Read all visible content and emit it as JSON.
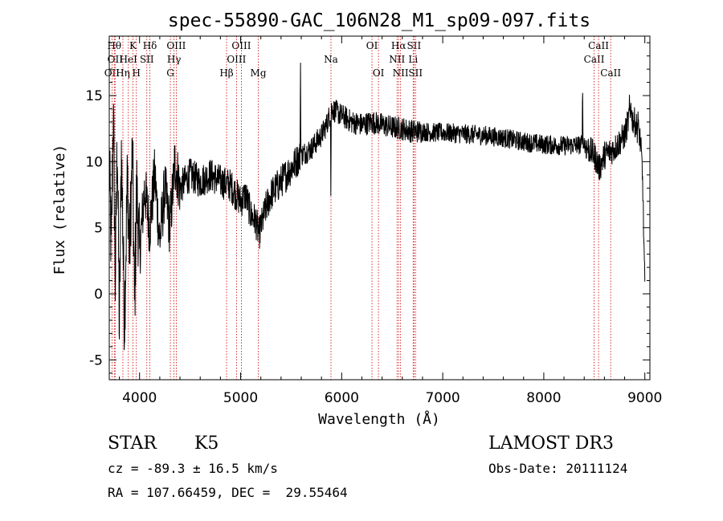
{
  "chart_data": {
    "type": "line",
    "title": "spec-55890-GAC_106N28_M1_sp09-097.fits",
    "xlabel": "Wavelength (Å)",
    "ylabel": "Flux (relative)",
    "xlim": [
      3700,
      9050
    ],
    "ylim": [
      -6.5,
      19.5
    ],
    "x_ticks": [
      4000,
      5000,
      6000,
      7000,
      8000,
      9000
    ],
    "x_tick_labels": [
      "4000",
      "5000",
      "6000",
      "7000",
      "8000",
      "9000"
    ],
    "y_ticks": [
      -5,
      0,
      5,
      10,
      15
    ],
    "y_tick_labels": [
      "-5",
      "0",
      "5",
      "10",
      "15"
    ],
    "series": [
      {
        "name": "spectrum",
        "color": "#000000",
        "anchors": [
          [
            3700,
            10
          ],
          [
            3720,
            3
          ],
          [
            3740,
            14
          ],
          [
            3760,
            1
          ],
          [
            3780,
            12
          ],
          [
            3800,
            -3
          ],
          [
            3820,
            11
          ],
          [
            3850,
            -2
          ],
          [
            3880,
            9
          ],
          [
            3900,
            3
          ],
          [
            3930,
            11
          ],
          [
            3950,
            -1
          ],
          [
            3970,
            8
          ],
          [
            4000,
            3
          ],
          [
            4050,
            8
          ],
          [
            4100,
            5
          ],
          [
            4150,
            9
          ],
          [
            4200,
            4
          ],
          [
            4250,
            8
          ],
          [
            4300,
            5
          ],
          [
            4350,
            10
          ],
          [
            4400,
            8
          ],
          [
            4500,
            9
          ],
          [
            4600,
            8.5
          ],
          [
            4700,
            9
          ],
          [
            4800,
            8.5
          ],
          [
            4900,
            8.2
          ],
          [
            5000,
            7
          ],
          [
            5050,
            7.5
          ],
          [
            5100,
            6
          ],
          [
            5150,
            5.5
          ],
          [
            5180,
            4.5
          ],
          [
            5200,
            5
          ],
          [
            5250,
            6.5
          ],
          [
            5300,
            7.5
          ],
          [
            5400,
            8.5
          ],
          [
            5500,
            9.5
          ],
          [
            5550,
            10
          ],
          [
            5600,
            10.5
          ],
          [
            5700,
            11
          ],
          [
            5800,
            12
          ],
          [
            5850,
            12.8
          ],
          [
            5900,
            14
          ],
          [
            6000,
            13.5
          ],
          [
            6100,
            13
          ],
          [
            6200,
            12.8
          ],
          [
            6300,
            13
          ],
          [
            6400,
            12.8
          ],
          [
            6500,
            12.6
          ],
          [
            6600,
            12.5
          ],
          [
            6700,
            12.3
          ],
          [
            6800,
            12.3
          ],
          [
            6900,
            12.2
          ],
          [
            7000,
            12.2
          ],
          [
            7200,
            12.1
          ],
          [
            7400,
            12
          ],
          [
            7600,
            11.8
          ],
          [
            7800,
            11.5
          ],
          [
            8000,
            11.3
          ],
          [
            8200,
            11.2
          ],
          [
            8400,
            11.3
          ],
          [
            8500,
            10.5
          ],
          [
            8550,
            9.5
          ],
          [
            8600,
            10.5
          ],
          [
            8700,
            11
          ],
          [
            8800,
            12
          ],
          [
            8850,
            13.5
          ],
          [
            8900,
            13
          ],
          [
            8950,
            12
          ],
          [
            8970,
            10
          ],
          [
            8980,
            8
          ],
          [
            8990,
            4
          ],
          [
            9000,
            0.5
          ]
        ],
        "spikes": [
          [
            5592,
            18.5
          ],
          [
            5600,
            11
          ],
          [
            5893,
            6.5
          ],
          [
            8384,
            16.5
          ],
          [
            8395,
            11
          ],
          [
            8848,
            15.3
          ],
          [
            8862,
            14.6
          ],
          [
            8933,
            14
          ]
        ]
      }
    ],
    "line_markers": [
      {
        "name": "OII",
        "wavelength": 3727,
        "row": 3
      },
      {
        "name": "Hθ",
        "wavelength": 3750,
        "row": 1
      },
      {
        "name": "OII",
        "wavelength": 3758,
        "row": 2
      },
      {
        "name": "Hη",
        "wavelength": 3835,
        "row": 3
      },
      {
        "name": "HeI",
        "wavelength": 3889,
        "row": 2
      },
      {
        "name": "K",
        "wavelength": 3934,
        "row": 1
      },
      {
        "name": "H",
        "wavelength": 3968,
        "row": 3
      },
      {
        "name": "SII",
        "wavelength": 4072,
        "row": 2
      },
      {
        "name": "Hδ",
        "wavelength": 4102,
        "row": 1
      },
      {
        "name": "G",
        "wavelength": 4305,
        "row": 3
      },
      {
        "name": "Hγ",
        "wavelength": 4341,
        "row": 2
      },
      {
        "name": "OIII",
        "wavelength": 4363,
        "row": 1
      },
      {
        "name": "Hβ",
        "wavelength": 4861,
        "row": 3
      },
      {
        "name": "OIII",
        "wavelength": 4959,
        "row": 2
      },
      {
        "name": "OIII",
        "wavelength": 5007,
        "row": 1
      },
      {
        "name": "Mg",
        "wavelength": 5175,
        "row": 3
      },
      {
        "name": "Na",
        "wavelength": 5894,
        "row": 2
      },
      {
        "name": "OI",
        "wavelength": 6300,
        "row": 1
      },
      {
        "name": "OI",
        "wavelength": 6364,
        "row": 3
      },
      {
        "name": "NII",
        "wavelength": 6548,
        "row": 2
      },
      {
        "name": "Hα",
        "wavelength": 6563,
        "row": 1
      },
      {
        "name": "NII",
        "wavelength": 6583,
        "row": 3
      },
      {
        "name": "Li",
        "wavelength": 6707,
        "row": 2
      },
      {
        "name": "SII",
        "wavelength": 6716,
        "row": 1
      },
      {
        "name": "SII",
        "wavelength": 6731,
        "row": 3
      },
      {
        "name": "CaII",
        "wavelength": 8498,
        "row": 2
      },
      {
        "name": "CaII",
        "wavelength": 8542,
        "row": 1
      },
      {
        "name": "CaII",
        "wavelength": 8662,
        "row": 3
      }
    ],
    "marker_color": "#cc0000"
  },
  "info": {
    "object_type": "STAR",
    "subclass": "K5",
    "survey": "LAMOST DR3",
    "velocity": "cz = -89.3 ± 16.5 km/s",
    "obs_date": "Obs-Date: 20111124",
    "coords": "RA = 107.66459, DEC =  29.55464"
  }
}
